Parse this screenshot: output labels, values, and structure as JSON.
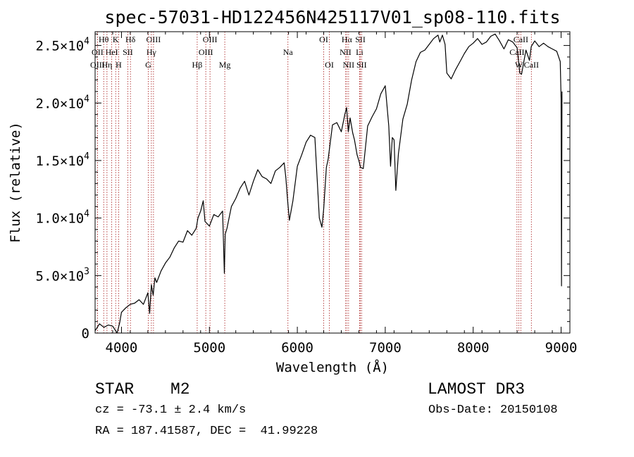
{
  "chart_data": {
    "type": "line",
    "title": "spec-57031-HD122456N425117V01_sp08-110.fits",
    "xlabel": "Wavelength (Å)",
    "ylabel": "Flux (relative)",
    "xlim": [
      3700,
      9100
    ],
    "ylim": [
      0,
      26200
    ],
    "xticks": [
      {
        "value": 4000,
        "label": "4000"
      },
      {
        "value": 5000,
        "label": "5000"
      },
      {
        "value": 6000,
        "label": "6000"
      },
      {
        "value": 7000,
        "label": "7000"
      },
      {
        "value": 8000,
        "label": "8000"
      },
      {
        "value": 9000,
        "label": "9000"
      }
    ],
    "yticks": [
      {
        "value": 0,
        "mant": "0",
        "exp": ""
      },
      {
        "value": 5000,
        "mant": "5.0×10",
        "exp": "3"
      },
      {
        "value": 10000,
        "mant": "1.0×10",
        "exp": "4"
      },
      {
        "value": 15000,
        "mant": "1.5×10",
        "exp": "4"
      },
      {
        "value": 20000,
        "mant": "2.0×10",
        "exp": "4"
      },
      {
        "value": 25000,
        "mant": "2.5×10",
        "exp": "4"
      }
    ],
    "series": [
      {
        "name": "flux",
        "x": [
          3700,
          3750,
          3800,
          3850,
          3900,
          3950,
          3980,
          4000,
          4050,
          4100,
          4150,
          4200,
          4250,
          4300,
          4320,
          4340,
          4360,
          4380,
          4400,
          4450,
          4500,
          4550,
          4600,
          4650,
          4700,
          4750,
          4800,
          4850,
          4870,
          4900,
          4930,
          4950,
          5000,
          5050,
          5100,
          5150,
          5170,
          5180,
          5200,
          5250,
          5300,
          5350,
          5400,
          5450,
          5500,
          5550,
          5600,
          5650,
          5700,
          5750,
          5800,
          5850,
          5870,
          5890,
          5910,
          5950,
          6000,
          6050,
          6100,
          6150,
          6200,
          6250,
          6280,
          6300,
          6330,
          6350,
          6400,
          6450,
          6500,
          6540,
          6560,
          6580,
          6600,
          6630,
          6650,
          6680,
          6700,
          6720,
          6750,
          6800,
          6850,
          6900,
          6950,
          7000,
          7040,
          7060,
          7080,
          7100,
          7120,
          7150,
          7200,
          7250,
          7300,
          7350,
          7400,
          7450,
          7500,
          7550,
          7600,
          7620,
          7650,
          7680,
          7700,
          7750,
          7800,
          7850,
          7900,
          7950,
          8000,
          8050,
          8100,
          8150,
          8200,
          8250,
          8300,
          8350,
          8400,
          8450,
          8500,
          8530,
          8550,
          8600,
          8640,
          8660,
          8700,
          8750,
          8800,
          8850,
          8900,
          8950,
          8990,
          9000,
          9005,
          9010
        ],
        "y": [
          200,
          800,
          500,
          700,
          600,
          0,
          900,
          1800,
          2200,
          2500,
          2600,
          2900,
          2500,
          3500,
          1700,
          4200,
          3300,
          4800,
          4400,
          5400,
          6100,
          6600,
          7400,
          8000,
          7900,
          8900,
          8500,
          9100,
          10000,
          10600,
          11500,
          9700,
          9300,
          10300,
          10100,
          10600,
          5200,
          8600,
          9100,
          11000,
          11700,
          12600,
          13200,
          12000,
          13200,
          14200,
          13600,
          13400,
          13000,
          14100,
          14400,
          14800,
          13500,
          11500,
          9800,
          11500,
          14500,
          15500,
          16600,
          17200,
          17000,
          10000,
          9200,
          10800,
          14400,
          15100,
          18100,
          18300,
          17500,
          19000,
          19600,
          17500,
          18700,
          17400,
          16800,
          15500,
          15000,
          14400,
          14300,
          18000,
          18800,
          19500,
          20800,
          21500,
          18000,
          14500,
          17000,
          16800,
          12400,
          15600,
          18600,
          19900,
          22000,
          23600,
          24400,
          24600,
          25100,
          25600,
          25900,
          25300,
          25900,
          25100,
          22600,
          22100,
          22900,
          23600,
          24300,
          24900,
          25200,
          25600,
          25100,
          25300,
          25800,
          26000,
          25400,
          24700,
          25500,
          25300,
          24800,
          22600,
          22500,
          24600,
          23700,
          24900,
          25400,
          24900,
          25200,
          24900,
          24700,
          24500,
          23600,
          20400,
          4100,
          21000
        ]
      }
    ],
    "lines": [
      {
        "name": "Hθ",
        "x": 3798,
        "row": 0
      },
      {
        "name": "K",
        "x": 3934,
        "row": 0
      },
      {
        "name": "Hδ",
        "x": 4102,
        "row": 0
      },
      {
        "name": "OIII",
        "x": 4364,
        "row": 0
      },
      {
        "name": "OIII",
        "x": 5007,
        "row": 0
      },
      {
        "name": "OI",
        "x": 6300,
        "row": 0
      },
      {
        "name": "Hα",
        "x": 6563,
        "row": 0
      },
      {
        "name": "SII",
        "x": 6717,
        "row": 0
      },
      {
        "name": "CaII",
        "x": 8542,
        "row": 0
      },
      {
        "name": "OII",
        "x": 3727,
        "row": 1
      },
      {
        "name": "HeI",
        "x": 3889,
        "row": 1
      },
      {
        "name": "SII",
        "x": 4072,
        "row": 1
      },
      {
        "name": "Hγ",
        "x": 4340,
        "row": 1
      },
      {
        "name": "OIII",
        "x": 4959,
        "row": 1
      },
      {
        "name": "Na",
        "x": 5893,
        "row": 1
      },
      {
        "name": "NII",
        "x": 6548,
        "row": 1
      },
      {
        "name": "Li",
        "x": 6708,
        "row": 1
      },
      {
        "name": "CaII",
        "x": 8498,
        "row": 1
      },
      {
        "name": "OIII",
        "x": 3727,
        "row": 2
      },
      {
        "name": "Hη",
        "x": 3835,
        "row": 2
      },
      {
        "name": "H",
        "x": 3968,
        "row": 2
      },
      {
        "name": "G",
        "x": 4305,
        "row": 2
      },
      {
        "name": "Hβ",
        "x": 4861,
        "row": 2
      },
      {
        "name": "Mg",
        "x": 5175,
        "row": 2
      },
      {
        "name": "OI",
        "x": 6364,
        "row": 2
      },
      {
        "name": "NII",
        "x": 6583,
        "row": 2
      },
      {
        "name": "SII",
        "x": 6731,
        "row": 2
      },
      {
        "name": "W",
        "x": 8520,
        "row": 2
      },
      {
        "name": "CaII",
        "x": 8662,
        "row": 2
      }
    ]
  },
  "info": {
    "object_class": "STAR",
    "subclass": "M2",
    "survey": "LAMOST DR3",
    "cz": "cz = -73.1 ± 2.4 km/s",
    "obs_date": "Obs-Date: 20150108",
    "coords": "RA = 187.41587, DEC =  41.99228"
  }
}
